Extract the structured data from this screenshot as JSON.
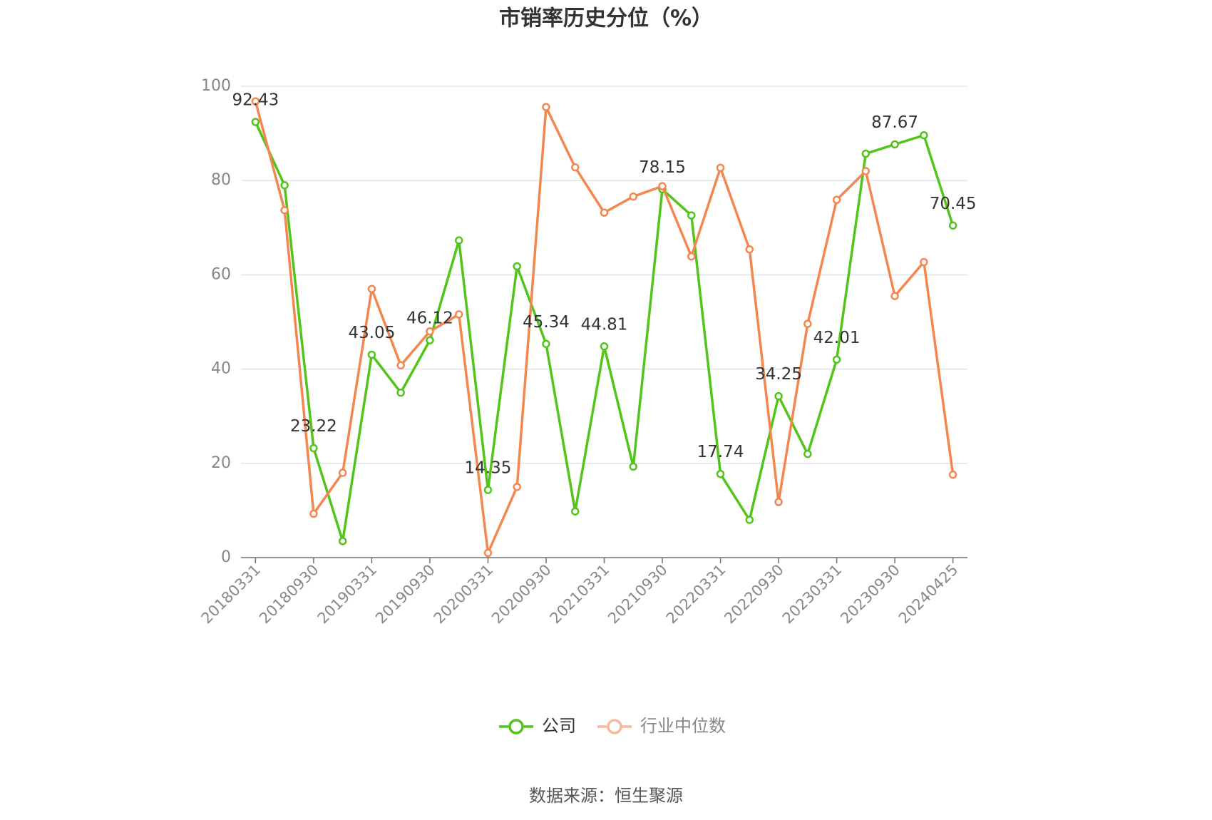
{
  "chart_data": {
    "type": "line",
    "title": "市销率历史分位（%）",
    "categories": [
      "20180331",
      null,
      "20180930",
      null,
      "20190331",
      null,
      "20190930",
      null,
      "20200331",
      null,
      "20200930",
      null,
      "20210331",
      null,
      "20210930",
      null,
      "20220331",
      null,
      "20220930",
      null,
      "20230331",
      null,
      "20230930",
      null,
      "20240425"
    ],
    "series": [
      {
        "name": "公司",
        "color": "#52c41a",
        "values": [
          92.43,
          79,
          23.22,
          3.5,
          43.05,
          35,
          46.12,
          67.3,
          14.35,
          61.8,
          45.34,
          9.8,
          44.81,
          19.3,
          78.15,
          72.6,
          17.74,
          8,
          34.25,
          22,
          42.01,
          85.7,
          87.67,
          89.6,
          70.45
        ],
        "value_labels": [
          "92.43",
          null,
          "23.22",
          null,
          "43.05",
          null,
          "46.12",
          null,
          "14.35",
          null,
          "45.34",
          null,
          "44.81",
          null,
          "78.15",
          null,
          "17.74",
          null,
          "34.25",
          null,
          "42.01",
          null,
          "87.67",
          null,
          "70.45"
        ]
      },
      {
        "name": "行业中位数",
        "color": "#f4874f",
        "values": [
          96.8,
          73.7,
          9.3,
          18,
          57,
          40.8,
          48,
          51.6,
          1,
          15,
          95.6,
          82.8,
          73.2,
          76.6,
          78.8,
          63.9,
          82.7,
          65.4,
          11.8,
          49.6,
          75.9,
          82,
          55.5,
          62.7,
          17.6
        ]
      }
    ],
    "ylim": [
      0,
      100
    ],
    "yticks": [
      0,
      20,
      40,
      60,
      80,
      100
    ],
    "grid": true,
    "legend": "bottom"
  },
  "source": "数据来源：恒生聚源"
}
